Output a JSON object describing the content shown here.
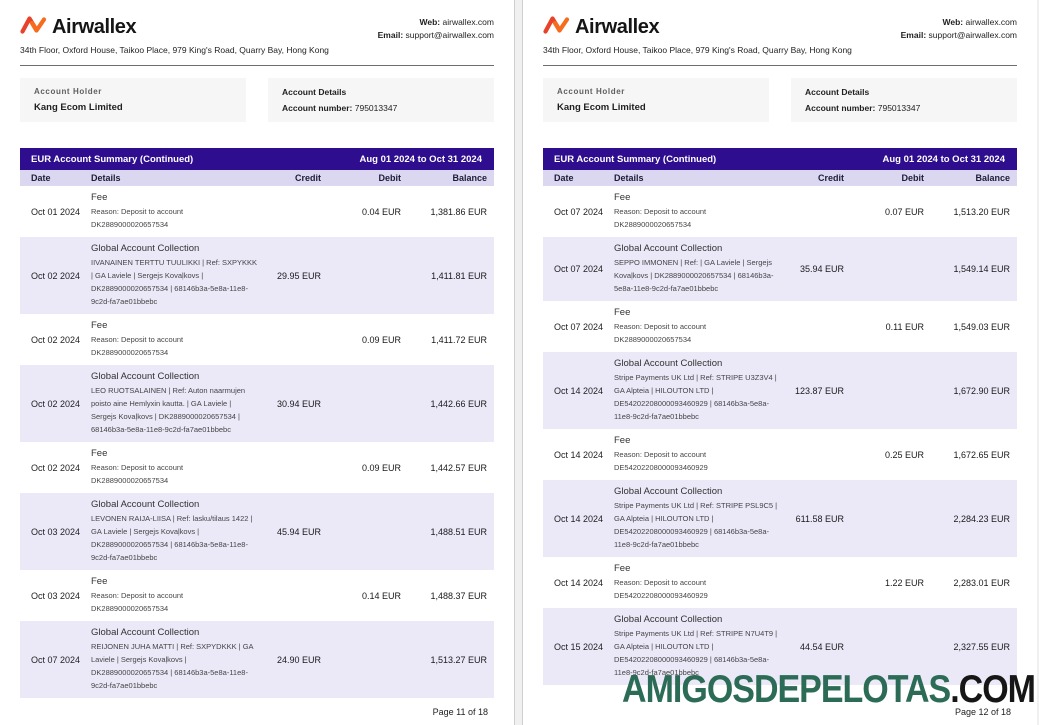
{
  "shared": {
    "logo_text": "Airwallex",
    "address": "34th Floor, Oxford House, Taikoo Place, 979 King's Road, Quarry Bay, Hong Kong",
    "web_label": "Web:",
    "web_value": "airwallex.com",
    "email_label": "Email:",
    "email_value": "support@airwallex.com",
    "account_holder_label": "Account Holder",
    "account_holder_name": "Kang Ecom Limited",
    "account_details_label": "Account Details",
    "account_number_label": "Account number:",
    "account_number": "795013347",
    "table_title": "EUR Account Summary (Continued)",
    "date_range": "Aug 01 2024 to Oct 31 2024",
    "columns": {
      "date": "Date",
      "details": "Details",
      "credit": "Credit",
      "debit": "Debit",
      "balance": "Balance"
    }
  },
  "colors": {
    "brand_orange_dark": "#e8432a",
    "brand_orange_light": "#f76b1c",
    "header_band": "#2e0d8e",
    "column_header_bg": "#dcd7f0",
    "row_alt_bg": "#ebe8f8",
    "watermark_green": "#2c6b55"
  },
  "watermark": {
    "main": "AMIGOSDEPELOTAS",
    "suffix": ".COM"
  },
  "pages": [
    {
      "footer": "Page 11 of 18",
      "rows": [
        {
          "date": "Oct 01 2024",
          "title": "Fee",
          "detail_lines": [
            "Reason: Deposit to account",
            "DK2889000020657534"
          ],
          "credit": "",
          "debit": "0.04 EUR",
          "balance": "1,381.86 EUR",
          "shaded": false
        },
        {
          "date": "Oct 02 2024",
          "title": "Global Account Collection",
          "detail_lines": [
            "IIVANAINEN TERTTU TUULIKKI | Ref: SXPYKKK",
            "| GA Laviele | Sergejs Kovaļkovs |",
            "DK2889000020657534 | 68146b3a-5e8a-11e8-",
            "9c2d-fa7ae01bbebc"
          ],
          "credit": "29.95 EUR",
          "debit": "",
          "balance": "1,411.81 EUR",
          "shaded": true
        },
        {
          "date": "Oct 02 2024",
          "title": "Fee",
          "detail_lines": [
            "Reason: Deposit to account",
            "DK2889000020657534"
          ],
          "credit": "",
          "debit": "0.09 EUR",
          "balance": "1,411.72 EUR",
          "shaded": false
        },
        {
          "date": "Oct 02 2024",
          "title": "Global Account Collection",
          "detail_lines": [
            "LEO RUOTSALAINEN | Ref: Auton naarmujen",
            "poisto aine Hemlyxin kautta. | GA Laviele |",
            "Sergejs Kovaļkovs | DK2889000020657534 |",
            "68146b3a-5e8a-11e8-9c2d-fa7ae01bbebc"
          ],
          "credit": "30.94 EUR",
          "debit": "",
          "balance": "1,442.66 EUR",
          "shaded": true
        },
        {
          "date": "Oct 02 2024",
          "title": "Fee",
          "detail_lines": [
            "Reason: Deposit to account",
            "DK2889000020657534"
          ],
          "credit": "",
          "debit": "0.09 EUR",
          "balance": "1,442.57 EUR",
          "shaded": false
        },
        {
          "date": "Oct 03 2024",
          "title": "Global Account Collection",
          "detail_lines": [
            "LEVONEN RAIJA-LIISA | Ref: lasku/tilaus 1422 |",
            "GA Laviele | Sergejs Kovaļkovs |",
            "DK2889000020657534 | 68146b3a-5e8a-11e8-",
            "9c2d-fa7ae01bbebc"
          ],
          "credit": "45.94 EUR",
          "debit": "",
          "balance": "1,488.51 EUR",
          "shaded": true
        },
        {
          "date": "Oct 03 2024",
          "title": "Fee",
          "detail_lines": [
            "Reason: Deposit to account",
            "DK2889000020657534"
          ],
          "credit": "",
          "debit": "0.14 EUR",
          "balance": "1,488.37 EUR",
          "shaded": false
        },
        {
          "date": "Oct 07 2024",
          "title": "Global Account Collection",
          "detail_lines": [
            "REIJONEN JUHA MATTI | Ref: SXPYDKKK | GA",
            "Laviele | Sergejs Kovaļkovs |",
            "DK2889000020657534 | 68146b3a-5e8a-11e8-",
            "9c2d-fa7ae01bbebc"
          ],
          "credit": "24.90 EUR",
          "debit": "",
          "balance": "1,513.27 EUR",
          "shaded": true
        }
      ]
    },
    {
      "footer": "Page 12 of 18",
      "rows": [
        {
          "date": "Oct 07 2024",
          "title": "Fee",
          "detail_lines": [
            "Reason: Deposit to account",
            "DK2889000020657534"
          ],
          "credit": "",
          "debit": "0.07 EUR",
          "balance": "1,513.20 EUR",
          "shaded": false
        },
        {
          "date": "Oct 07 2024",
          "title": "Global Account Collection",
          "detail_lines": [
            "SEPPO IMMONEN | Ref: | GA Laviele | Sergejs",
            "Kovaļkovs | DK2889000020657534 | 68146b3a-",
            "5e8a-11e8-9c2d-fa7ae01bbebc"
          ],
          "credit": "35.94 EUR",
          "debit": "",
          "balance": "1,549.14 EUR",
          "shaded": true
        },
        {
          "date": "Oct 07 2024",
          "title": "Fee",
          "detail_lines": [
            "Reason: Deposit to account",
            "DK2889000020657534"
          ],
          "credit": "",
          "debit": "0.11 EUR",
          "balance": "1,549.03 EUR",
          "shaded": false
        },
        {
          "date": "Oct 14 2024",
          "title": "Global Account Collection",
          "detail_lines": [
            "Stripe Payments UK Ltd | Ref: STRIPE U3Z3V4 |",
            "GA Alpteia | HILOUTON LTD |",
            "DE54202208000093460929 | 68146b3a-5e8a-",
            "11e8-9c2d-fa7ae01bbebc"
          ],
          "credit": "123.87 EUR",
          "debit": "",
          "balance": "1,672.90 EUR",
          "shaded": true
        },
        {
          "date": "Oct 14 2024",
          "title": "Fee",
          "detail_lines": [
            "Reason: Deposit to account",
            "DE54202208000093460929"
          ],
          "credit": "",
          "debit": "0.25 EUR",
          "balance": "1,672.65 EUR",
          "shaded": false
        },
        {
          "date": "Oct 14 2024",
          "title": "Global Account Collection",
          "detail_lines": [
            "Stripe Payments UK Ltd | Ref: STRIPE PSL9C5 |",
            "GA Alpteia | HILOUTON LTD |",
            "DE54202208000093460929 | 68146b3a-5e8a-",
            "11e8-9c2d-fa7ae01bbebc"
          ],
          "credit": "611.58 EUR",
          "debit": "",
          "balance": "2,284.23 EUR",
          "shaded": true
        },
        {
          "date": "Oct 14 2024",
          "title": "Fee",
          "detail_lines": [
            "Reason: Deposit to account",
            "DE54202208000093460929"
          ],
          "credit": "",
          "debit": "1.22 EUR",
          "balance": "2,283.01 EUR",
          "shaded": false
        },
        {
          "date": "Oct 15 2024",
          "title": "Global Account Collection",
          "detail_lines": [
            "Stripe Payments UK Ltd | Ref: STRIPE N7U4T9 |",
            "GA Alpteia | HILOUTON LTD |",
            "DE54202208000093460929 | 68146b3a-5e8a-",
            "11e8-9c2d-fa7ae01bbebc"
          ],
          "credit": "44.54 EUR",
          "debit": "",
          "balance": "2,327.55 EUR",
          "shaded": true
        }
      ]
    }
  ]
}
